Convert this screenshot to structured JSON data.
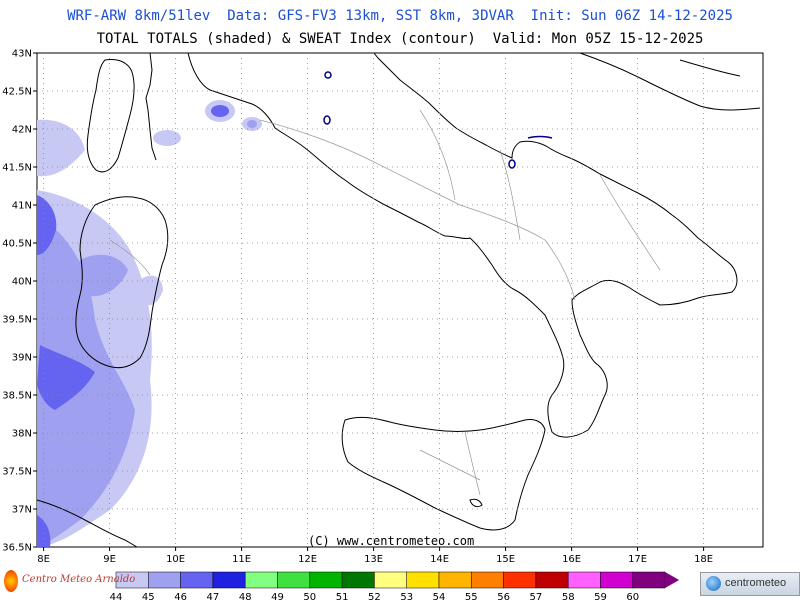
{
  "header": {
    "line1": "WRF-ARW 8km/51lev  Data: GFS-FV3 13km, SST 8km, 3DVAR  Init: Sun 06Z 14-12-2025",
    "line2": "TOTAL TOTALS (shaded) & SWEAT Index (contour)  Valid: Mon 05Z 15-12-2025"
  },
  "axes": {
    "lat_labels": [
      "43N",
      "42.5N",
      "42N",
      "41.5N",
      "41N",
      "40.5N",
      "40N",
      "39.5N",
      "39N",
      "38.5N",
      "38N",
      "37.5N",
      "37N",
      "36.5N"
    ],
    "lon_labels": [
      "8E",
      "9E",
      "10E",
      "11E",
      "12E",
      "13E",
      "14E",
      "15E",
      "16E",
      "17E",
      "18E"
    ],
    "lat_range": [
      36.5,
      43
    ],
    "lon_range": [
      7.9,
      18.9
    ],
    "grid": "dotted"
  },
  "copyright": "(C) www.centrometeo.com",
  "logos": {
    "left_text": "Centro Meteo Arnaldo",
    "right_text": "centrometeo"
  },
  "colorbar": {
    "ticks": [
      "44",
      "45",
      "46",
      "47",
      "48",
      "49",
      "50",
      "51",
      "52",
      "53",
      "54",
      "55",
      "56",
      "57",
      "58",
      "59",
      "60"
    ],
    "colors": [
      "#c8c8f5",
      "#a0a0f0",
      "#6464f0",
      "#2020e0",
      "#80ff80",
      "#40e040",
      "#00b400",
      "#007800",
      "#ffff80",
      "#ffe000",
      "#ffb400",
      "#ff8000",
      "#ff3000",
      "#c00000",
      "#ff60ff",
      "#d000d0",
      "#800080"
    ]
  },
  "colors": {
    "title": "#1a4fd6",
    "shade_light": "#c8c8f5",
    "shade_mid": "#a0a0f0",
    "shade_dark": "#6464f0",
    "contour": "#00008b"
  }
}
